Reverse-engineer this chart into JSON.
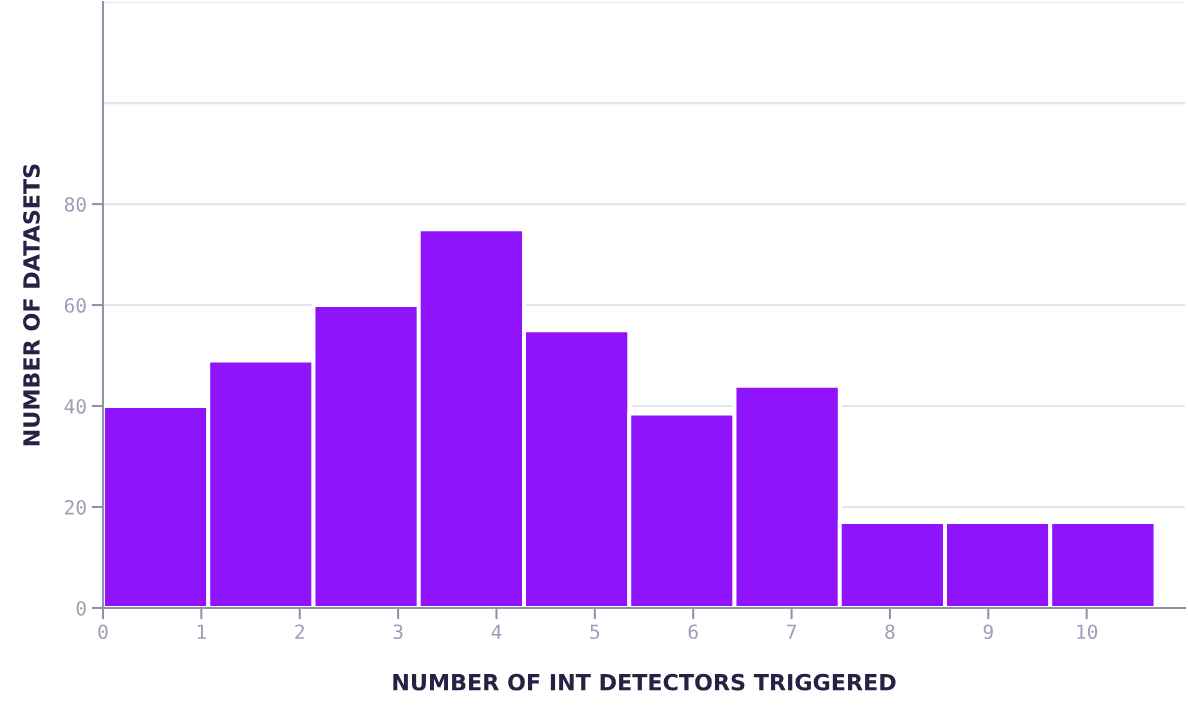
{
  "chart_data": {
    "type": "histogram",
    "xlabel": "NUMBER OF INT DETECTORS TRIGGERED",
    "ylabel": "NUMBER OF DATASETS",
    "bins": [
      0,
      1.07,
      2.14,
      3.21,
      4.28,
      5.35,
      6.42,
      7.49,
      8.56,
      9.63,
      10.7
    ],
    "values": [
      40,
      49,
      60,
      75,
      55,
      38.5,
      44,
      17,
      17,
      17
    ],
    "color": "#8f14fb",
    "xlim": [
      0,
      11
    ],
    "xticks": [
      0,
      1,
      2,
      3,
      4,
      5,
      6,
      7,
      8,
      9,
      10
    ],
    "ylim": [
      0,
      120
    ],
    "yticks": [
      0,
      20,
      40,
      60,
      80,
      {
        "value": 100,
        "label": null
      },
      {
        "value": 120,
        "label": null
      }
    ],
    "grid": "y"
  }
}
